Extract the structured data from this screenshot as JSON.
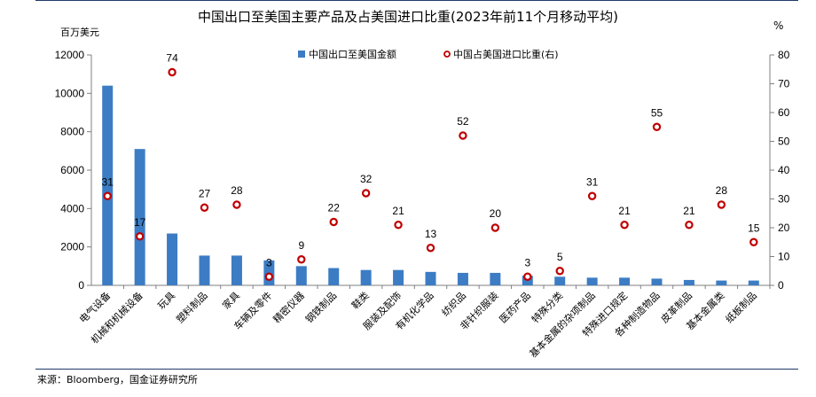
{
  "chart_data": {
    "type": "bar",
    "title": "中国出口至美国主要产品及占美国进口比重(2023年前11个月移动平均)",
    "ylabel_left": "百万美元",
    "ylabel_right": "%",
    "ylim_left": [
      0,
      12000
    ],
    "yticks_left": [
      0,
      2000,
      4000,
      6000,
      8000,
      10000,
      12000
    ],
    "ylim_right": [
      0,
      80
    ],
    "yticks_right": [
      0,
      10,
      20,
      30,
      40,
      50,
      60,
      70,
      80
    ],
    "legend_position": "top",
    "categories": [
      "电气设备",
      "机械和机械设备",
      "玩具",
      "塑料制品",
      "家具",
      "车辆及零件",
      "精密仪器",
      "钢铁制品",
      "鞋类",
      "服装及配饰",
      "有机化学品",
      "纺织品",
      "非针织服装",
      "医药产品",
      "特殊分类",
      "基本金属的杂项制品",
      "特殊进口规定",
      "各种制造物品",
      "皮革制品",
      "基本金属类",
      "纸板制品"
    ],
    "series": [
      {
        "name": "中国出口至美国金额",
        "kind": "bar",
        "axis": "left",
        "color": "#3c7cc4",
        "values": [
          10400,
          7100,
          2700,
          1550,
          1550,
          1300,
          1000,
          900,
          800,
          800,
          700,
          650,
          650,
          500,
          450,
          400,
          400,
          350,
          280,
          250,
          250
        ]
      },
      {
        "name": "中国占美国进口比重(右)",
        "kind": "marker",
        "axis": "right",
        "color": "#c00000",
        "values": [
          31,
          17,
          74,
          27,
          28,
          3,
          9,
          22,
          32,
          21,
          13,
          52,
          20,
          3,
          5,
          31,
          21,
          55,
          21,
          28,
          15
        ]
      }
    ]
  },
  "source": "来源：Bloomberg，国金证券研究所"
}
